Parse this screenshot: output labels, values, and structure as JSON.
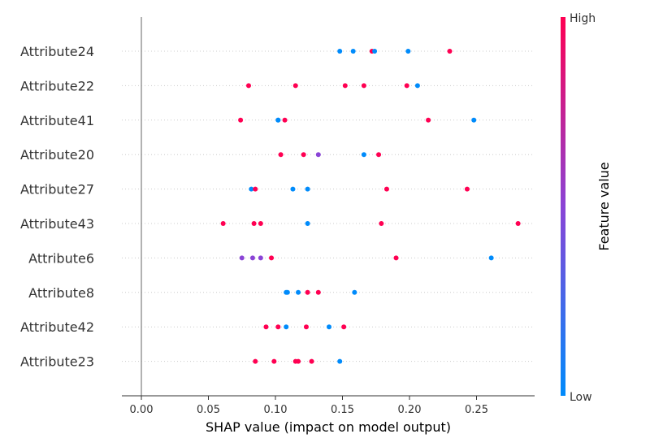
{
  "chart_data": {
    "type": "scatter",
    "subtype": "shap-beeswarm",
    "xlabel": "SHAP value (impact on model output)",
    "xlim": [
      -0.014,
      0.295
    ],
    "xticks": [
      "0.00",
      "0.05",
      "0.10",
      "0.15",
      "0.20",
      "0.25"
    ],
    "xtick_values": [
      0,
      0.05,
      0.1,
      0.15,
      0.2,
      0.25
    ],
    "grid": false,
    "colorbar": {
      "title": "Feature value",
      "high_label": "High",
      "low_label": "Low"
    },
    "colors": {
      "low": "#008bfb",
      "mid": "#8a44d6",
      "high": "#ff0052"
    },
    "features": [
      {
        "name": "Attribute24",
        "points": [
          {
            "x": 0.148,
            "c": "low"
          },
          {
            "x": 0.158,
            "c": "low"
          },
          {
            "x": 0.172,
            "c": "high"
          },
          {
            "x": 0.174,
            "c": "low"
          },
          {
            "x": 0.199,
            "c": "low"
          },
          {
            "x": 0.23,
            "c": "high"
          }
        ]
      },
      {
        "name": "Attribute22",
        "points": [
          {
            "x": 0.08,
            "c": "high"
          },
          {
            "x": 0.115,
            "c": "high"
          },
          {
            "x": 0.152,
            "c": "high"
          },
          {
            "x": 0.166,
            "c": "high"
          },
          {
            "x": 0.198,
            "c": "high"
          },
          {
            "x": 0.206,
            "c": "low"
          }
        ]
      },
      {
        "name": "Attribute41",
        "points": [
          {
            "x": 0.074,
            "c": "high"
          },
          {
            "x": 0.102,
            "c": "low"
          },
          {
            "x": 0.102,
            "c": "low"
          },
          {
            "x": 0.107,
            "c": "high"
          },
          {
            "x": 0.214,
            "c": "high"
          },
          {
            "x": 0.248,
            "c": "low"
          }
        ]
      },
      {
        "name": "Attribute20",
        "points": [
          {
            "x": 0.104,
            "c": "high"
          },
          {
            "x": 0.121,
            "c": "high"
          },
          {
            "x": 0.132,
            "c": "mid"
          },
          {
            "x": 0.166,
            "c": "low"
          },
          {
            "x": 0.177,
            "c": "high"
          }
        ]
      },
      {
        "name": "Attribute27",
        "points": [
          {
            "x": 0.082,
            "c": "low"
          },
          {
            "x": 0.085,
            "c": "high"
          },
          {
            "x": 0.113,
            "c": "low"
          },
          {
            "x": 0.124,
            "c": "low"
          },
          {
            "x": 0.183,
            "c": "high"
          },
          {
            "x": 0.243,
            "c": "high"
          }
        ]
      },
      {
        "name": "Attribute43",
        "points": [
          {
            "x": 0.061,
            "c": "high"
          },
          {
            "x": 0.084,
            "c": "high"
          },
          {
            "x": 0.089,
            "c": "high"
          },
          {
            "x": 0.124,
            "c": "low"
          },
          {
            "x": 0.179,
            "c": "high"
          },
          {
            "x": 0.281,
            "c": "high"
          }
        ]
      },
      {
        "name": "Attribute6",
        "points": [
          {
            "x": 0.075,
            "c": "mid"
          },
          {
            "x": 0.083,
            "c": "mid"
          },
          {
            "x": 0.089,
            "c": "mid"
          },
          {
            "x": 0.097,
            "c": "high"
          },
          {
            "x": 0.19,
            "c": "high"
          },
          {
            "x": 0.261,
            "c": "low"
          }
        ]
      },
      {
        "name": "Attribute8",
        "points": [
          {
            "x": 0.108,
            "c": "low"
          },
          {
            "x": 0.109,
            "c": "low"
          },
          {
            "x": 0.117,
            "c": "low"
          },
          {
            "x": 0.124,
            "c": "high"
          },
          {
            "x": 0.132,
            "c": "high"
          },
          {
            "x": 0.159,
            "c": "low"
          }
        ]
      },
      {
        "name": "Attribute42",
        "points": [
          {
            "x": 0.093,
            "c": "high"
          },
          {
            "x": 0.102,
            "c": "high"
          },
          {
            "x": 0.108,
            "c": "low"
          },
          {
            "x": 0.123,
            "c": "high"
          },
          {
            "x": 0.14,
            "c": "low"
          },
          {
            "x": 0.151,
            "c": "high"
          }
        ]
      },
      {
        "name": "Attribute23",
        "points": [
          {
            "x": 0.085,
            "c": "high"
          },
          {
            "x": 0.099,
            "c": "high"
          },
          {
            "x": 0.115,
            "c": "high"
          },
          {
            "x": 0.117,
            "c": "high"
          },
          {
            "x": 0.127,
            "c": "high"
          },
          {
            "x": 0.148,
            "c": "low"
          }
        ]
      }
    ]
  }
}
